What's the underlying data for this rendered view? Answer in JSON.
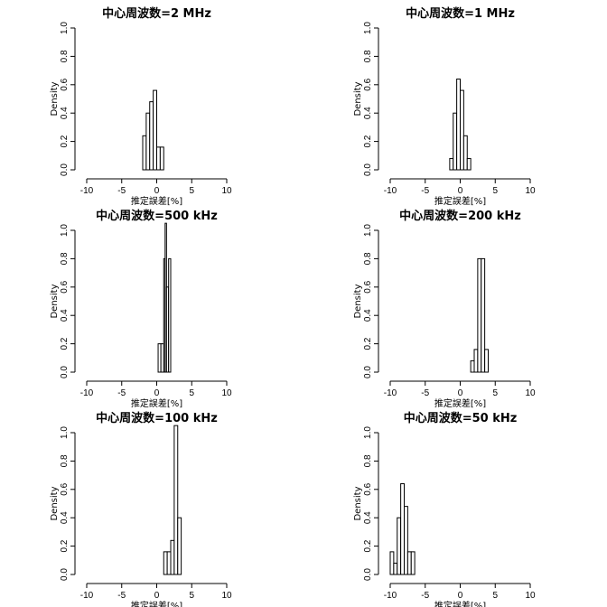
{
  "chart_data": [
    {
      "type": "histogram",
      "title": "中心周波数=2 MHz",
      "xlabel": "推定誤差[%]",
      "ylabel": "Density",
      "xlim": [
        -10,
        10
      ],
      "ylim": [
        0,
        1.0
      ],
      "xticks": [
        "-10",
        "-5",
        "0",
        "5",
        "10"
      ],
      "yticks": [
        "0.0",
        "0.2",
        "0.4",
        "0.6",
        "0.8",
        "1.0"
      ],
      "bins": [
        {
          "x0": -2.0,
          "x1": -1.5,
          "density": 0.24
        },
        {
          "x0": -1.5,
          "x1": -1.0,
          "density": 0.4
        },
        {
          "x0": -1.0,
          "x1": -0.5,
          "density": 0.48
        },
        {
          "x0": -0.5,
          "x1": 0.0,
          "density": 0.56
        },
        {
          "x0": 0.0,
          "x1": 0.5,
          "density": 0.16
        },
        {
          "x0": 0.5,
          "x1": 1.0,
          "density": 0.16
        }
      ]
    },
    {
      "type": "histogram",
      "title": "中心周波数=1 MHz",
      "xlabel": "推定誤差[%]",
      "ylabel": "Density",
      "xlim": [
        -10,
        10
      ],
      "ylim": [
        0,
        1.0
      ],
      "xticks": [
        "-10",
        "-5",
        "0",
        "5",
        "10"
      ],
      "yticks": [
        "0.0",
        "0.2",
        "0.4",
        "0.6",
        "0.8",
        "1.0"
      ],
      "bins": [
        {
          "x0": -1.5,
          "x1": -1.0,
          "density": 0.08
        },
        {
          "x0": -1.0,
          "x1": -0.5,
          "density": 0.4
        },
        {
          "x0": -0.5,
          "x1": 0.0,
          "density": 0.64
        },
        {
          "x0": 0.0,
          "x1": 0.5,
          "density": 0.56
        },
        {
          "x0": 0.5,
          "x1": 1.0,
          "density": 0.24
        },
        {
          "x0": 1.0,
          "x1": 1.5,
          "density": 0.08
        }
      ]
    },
    {
      "type": "histogram",
      "title": "中心周波数=500 kHz",
      "xlabel": "推定誤差[%]",
      "ylabel": "Density",
      "xlim": [
        -10,
        10
      ],
      "ylim": [
        0,
        1.0
      ],
      "xticks": [
        "-10",
        "-5",
        "0",
        "5",
        "10"
      ],
      "yticks": [
        "0.0",
        "0.2",
        "0.4",
        "0.6",
        "0.8",
        "1.0"
      ],
      "bins": [
        {
          "x0": 0.2,
          "x1": 0.6,
          "density": 0.2
        },
        {
          "x0": 0.6,
          "x1": 1.0,
          "density": 0.2
        },
        {
          "x0": 1.0,
          "x1": 1.2,
          "density": 0.8
        },
        {
          "x0": 1.2,
          "x1": 1.4,
          "density": 1.05
        },
        {
          "x0": 1.4,
          "x1": 1.7,
          "density": 0.6
        },
        {
          "x0": 1.7,
          "x1": 2.0,
          "density": 0.8
        }
      ]
    },
    {
      "type": "histogram",
      "title": "中心周波数=200 kHz",
      "xlabel": "推定誤差[%]",
      "ylabel": "Density",
      "xlim": [
        -10,
        10
      ],
      "ylim": [
        0,
        1.0
      ],
      "xticks": [
        "-10",
        "-5",
        "0",
        "5",
        "10"
      ],
      "yticks": [
        "0.0",
        "0.2",
        "0.4",
        "0.6",
        "0.8",
        "1.0"
      ],
      "bins": [
        {
          "x0": 1.5,
          "x1": 2.0,
          "density": 0.08
        },
        {
          "x0": 2.0,
          "x1": 2.5,
          "density": 0.16
        },
        {
          "x0": 2.5,
          "x1": 3.0,
          "density": 0.8
        },
        {
          "x0": 3.0,
          "x1": 3.5,
          "density": 0.8
        },
        {
          "x0": 3.5,
          "x1": 4.0,
          "density": 0.16
        }
      ]
    },
    {
      "type": "histogram",
      "title": "中心周波数=100 kHz",
      "xlabel": "推定誤差[%]",
      "ylabel": "Density",
      "xlim": [
        -10,
        10
      ],
      "ylim": [
        0,
        1.0
      ],
      "xticks": [
        "-10",
        "-5",
        "0",
        "5",
        "10"
      ],
      "yticks": [
        "0.0",
        "0.2",
        "0.4",
        "0.6",
        "0.8",
        "1.0"
      ],
      "bins": [
        {
          "x0": 1.0,
          "x1": 1.5,
          "density": 0.16
        },
        {
          "x0": 1.5,
          "x1": 2.0,
          "density": 0.16
        },
        {
          "x0": 2.0,
          "x1": 2.5,
          "density": 0.24
        },
        {
          "x0": 2.5,
          "x1": 3.0,
          "density": 1.05
        },
        {
          "x0": 3.0,
          "x1": 3.5,
          "density": 0.4
        }
      ]
    },
    {
      "type": "histogram",
      "title": "中心周波数=50 kHz",
      "xlabel": "推定誤差[%]",
      "ylabel": "Density",
      "xlim": [
        -10,
        10
      ],
      "ylim": [
        0,
        1.0
      ],
      "xticks": [
        "-10",
        "-5",
        "0",
        "5",
        "10"
      ],
      "yticks": [
        "0.0",
        "0.2",
        "0.4",
        "0.6",
        "0.8",
        "1.0"
      ],
      "bins": [
        {
          "x0": -10.0,
          "x1": -9.5,
          "density": 0.16
        },
        {
          "x0": -9.5,
          "x1": -9.0,
          "density": 0.08
        },
        {
          "x0": -9.0,
          "x1": -8.5,
          "density": 0.4
        },
        {
          "x0": -8.5,
          "x1": -8.0,
          "density": 0.64
        },
        {
          "x0": -8.0,
          "x1": -7.5,
          "density": 0.48
        },
        {
          "x0": -7.5,
          "x1": -7.0,
          "density": 0.16
        },
        {
          "x0": -7.0,
          "x1": -6.5,
          "density": 0.16
        }
      ]
    }
  ]
}
